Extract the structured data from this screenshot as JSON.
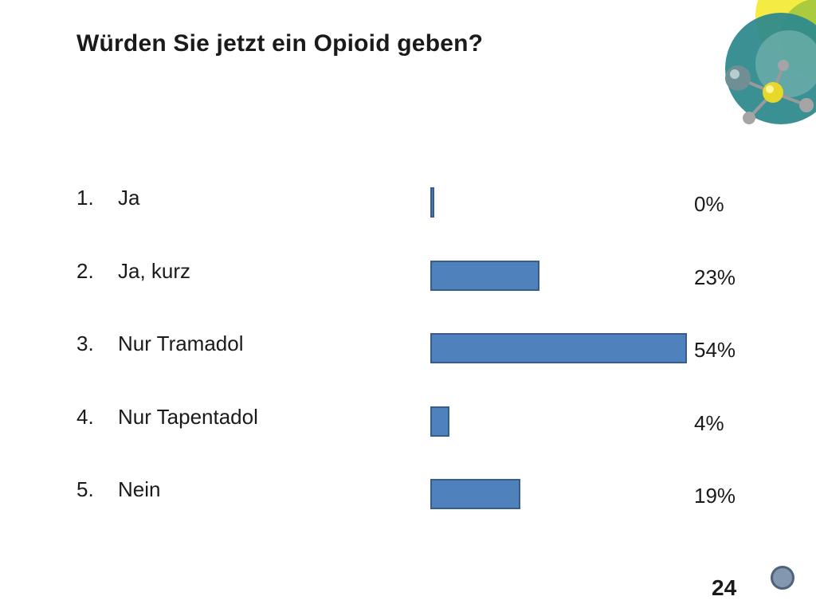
{
  "slide": {
    "title": "Würden Sie jetzt ein Opioid geben?",
    "page_number": "24"
  },
  "colors": {
    "bar_fill": "#4f81bd",
    "bar_border": "#385d8a"
  },
  "chart_data": {
    "type": "bar",
    "orientation": "horizontal",
    "categories": [
      "Ja",
      "Ja, kurz",
      "Nur Tramadol",
      "Nur Tapentadol",
      "Nein"
    ],
    "numbers": [
      "1.",
      "2.",
      "3.",
      "4.",
      "5."
    ],
    "values": [
      0,
      23,
      54,
      4,
      19
    ],
    "value_labels": [
      "0%",
      "23%",
      "54%",
      "4%",
      "19%"
    ],
    "title": "Würden Sie jetzt ein Opioid geben?",
    "grid": false,
    "legend": "none"
  }
}
